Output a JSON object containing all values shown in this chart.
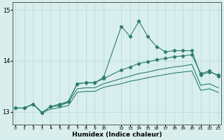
{
  "xlabel": "Humidex (Indice chaleur)",
  "bg_color": "#d8efed",
  "grid_color": "#b5d8d5",
  "line_color": "#2e7d72",
  "x_positions": [
    0,
    1,
    2,
    3,
    4,
    5,
    6,
    7,
    8,
    9,
    10,
    12,
    13,
    14,
    15,
    16,
    17,
    18,
    19,
    20,
    21,
    22,
    23
  ],
  "x_labels": [
    "0",
    "1",
    "2",
    "3",
    "4",
    "5",
    "6",
    "7",
    "8",
    "9",
    "10",
    "12",
    "13",
    "14",
    "15",
    "16",
    "17",
    "18",
    "19",
    "20",
    "21",
    "22",
    "23"
  ],
  "xlim": [
    -0.3,
    23.3
  ],
  "ylim": [
    12.75,
    15.15
  ],
  "yticks": [
    13,
    14,
    15
  ],
  "series_smooth1": [
    13.07,
    13.07,
    13.15,
    12.98,
    13.1,
    13.12,
    13.18,
    13.45,
    13.47,
    13.47,
    13.55,
    13.65,
    13.7,
    13.75,
    13.78,
    13.82,
    13.85,
    13.88,
    13.9,
    13.93,
    13.52,
    13.55,
    13.47
  ],
  "series_smooth2": [
    13.07,
    13.07,
    13.15,
    12.98,
    13.05,
    13.08,
    13.12,
    13.38,
    13.4,
    13.4,
    13.48,
    13.55,
    13.6,
    13.63,
    13.67,
    13.7,
    13.73,
    13.76,
    13.78,
    13.8,
    13.42,
    13.45,
    13.38
  ],
  "series_marked_upper": [
    13.07,
    13.07,
    13.15,
    12.98,
    13.1,
    13.12,
    13.2,
    13.55,
    13.57,
    13.57,
    13.65,
    13.82,
    13.88,
    13.95,
    13.98,
    14.02,
    14.05,
    14.08,
    14.1,
    14.12,
    13.75,
    13.8,
    13.7
  ],
  "series_marked_spiky": [
    13.07,
    13.07,
    13.15,
    12.98,
    13.1,
    13.15,
    13.2,
    13.55,
    13.57,
    13.57,
    13.68,
    14.68,
    14.48,
    14.78,
    14.48,
    14.28,
    14.18,
    14.2,
    14.2,
    14.2,
    13.72,
    13.78,
    13.72
  ]
}
